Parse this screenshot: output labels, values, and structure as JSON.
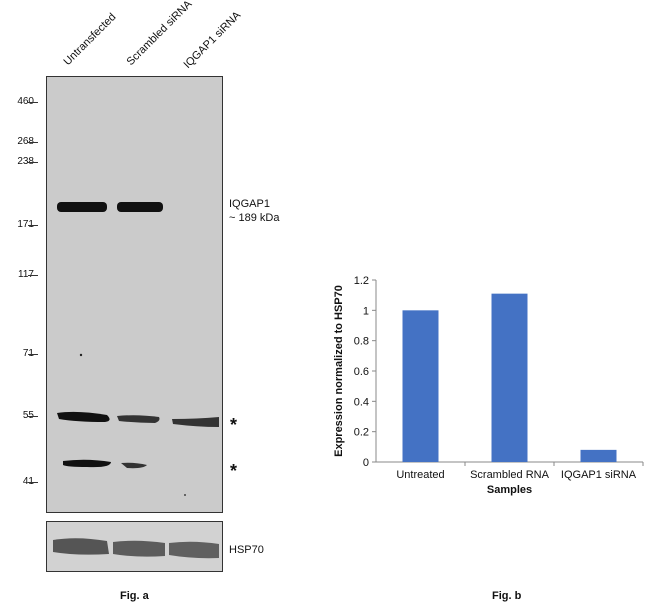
{
  "panel_a": {
    "lanes": [
      "Untransfected",
      "Scrambled siRNA",
      "IQGAP1 siRNA"
    ],
    "mw_markers": [
      "460",
      "268",
      "238",
      "171",
      "117",
      "71",
      "55",
      "41"
    ],
    "target_label": "IQGAP1",
    "target_size": "~ 189 kDa",
    "asterisk": "*",
    "loading_control": "HSP70",
    "caption": "Fig. a"
  },
  "panel_b": {
    "caption": "Fig. b"
  },
  "chart_data": {
    "type": "bar",
    "title": "",
    "xlabel": "Samples",
    "ylabel": "Expression normalized to HSP70",
    "categories": [
      "Untreated",
      "Scrambled RNA",
      "IQGAP1 siRNA"
    ],
    "values": [
      1.0,
      1.11,
      0.08
    ],
    "ylim": [
      0,
      1.2
    ],
    "yticks": [
      "0",
      "0.2",
      "0.4",
      "0.6",
      "0.8",
      "1",
      "1.2"
    ],
    "bar_color": "#4472c4",
    "grid": false,
    "legend": "none"
  }
}
